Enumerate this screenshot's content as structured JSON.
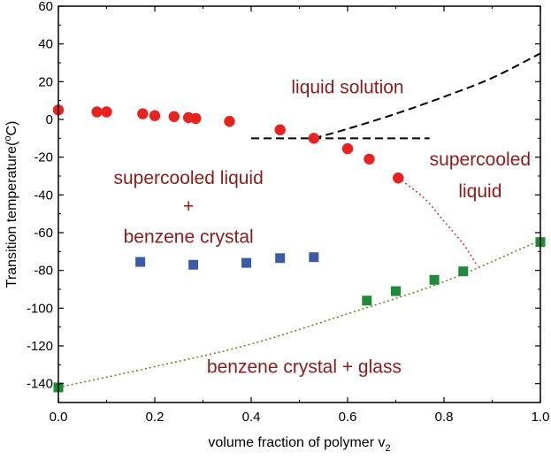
{
  "chart_data": {
    "type": "scatter",
    "title": "",
    "xlabel": "volume fraction of polymer v",
    "xlabel_subscript": "2",
    "ylabel": "Transition temperature(",
    "ylabel_unit_sup": "o",
    "ylabel_unit": "C)",
    "xlim": [
      0.0,
      1.0
    ],
    "ylim": [
      -150,
      60
    ],
    "xticks": [
      "0.0",
      "0.2",
      "0.4",
      "0.6",
      "0.8",
      "1.0"
    ],
    "yticks": [
      "-140",
      "-120",
      "-100",
      "-80",
      "-60",
      "-40",
      "-20",
      "0",
      "20",
      "40",
      "60"
    ],
    "grid": false,
    "legend": "none",
    "series": [
      {
        "marker": "circle",
        "color": "#e8231f",
        "x": [
          0.0,
          0.08,
          0.1,
          0.175,
          0.2,
          0.24,
          0.27,
          0.285,
          0.355,
          0.46,
          0.53,
          0.6,
          0.645,
          0.705
        ],
        "y": [
          5,
          4,
          4,
          3,
          2,
          1.5,
          1,
          0.5,
          -1,
          -5.5,
          -10,
          -15.5,
          -21,
          -31
        ]
      },
      {
        "marker": "square",
        "color": "#3a5ba8",
        "x": [
          0.17,
          0.28,
          0.39,
          0.46,
          0.53
        ],
        "y": [
          -75.5,
          -77,
          -76,
          -73.5,
          -73
        ]
      },
      {
        "marker": "square",
        "color": "#1e8a3a",
        "x": [
          0.0,
          0.64,
          0.7,
          0.78,
          0.84,
          1.0
        ],
        "y": [
          -142,
          -96,
          -91,
          -85,
          -80.5,
          -65
        ]
      }
    ],
    "lines": [
      {
        "style": "dashed",
        "color": "#000000",
        "x": [
          0.4,
          0.45,
          0.5,
          0.55,
          0.6,
          0.65,
          0.7,
          0.75,
          0.8,
          0.85,
          0.9,
          0.95,
          1.0
        ],
        "y": [
          -10,
          -10,
          -10,
          -10,
          -10,
          -10,
          -10,
          -10,
          -10,
          -10,
          -10,
          -10,
          -10
        ],
        "x_end": 0.77,
        "x_start": 0.4
      },
      {
        "style": "dashed",
        "color": "#000000",
        "x": [
          0.53,
          0.6,
          0.7,
          0.8,
          0.9,
          1.0
        ],
        "y": [
          -10,
          -5,
          3,
          12,
          22,
          35
        ]
      },
      {
        "style": "dotted",
        "color": "#c0392b",
        "x": [
          0.705,
          0.76,
          0.8,
          0.84,
          0.87
        ],
        "y": [
          -31,
          -42,
          -54,
          -66,
          -78
        ]
      },
      {
        "style": "dotted",
        "color": "#6b7d1a",
        "x": [
          0.0,
          0.2,
          0.4,
          0.6,
          0.8,
          1.0
        ],
        "y": [
          -142,
          -131,
          -119,
          -103,
          -86,
          -64
        ]
      }
    ],
    "annotations": [
      {
        "text": "liquid solution",
        "x": 0.6,
        "y": 17
      },
      {
        "text": "supercooled",
        "x": 0.875,
        "y": -21
      },
      {
        "text": "liquid",
        "x": 0.875,
        "y": -38
      },
      {
        "text": "supercooled liquid",
        "x": 0.27,
        "y": -31
      },
      {
        "text": "+",
        "x": 0.27,
        "y": -46
      },
      {
        "text": "benzene crystal",
        "x": 0.27,
        "y": -62
      },
      {
        "text": "benzene crystal + glass",
        "x": 0.51,
        "y": -131
      }
    ]
  }
}
